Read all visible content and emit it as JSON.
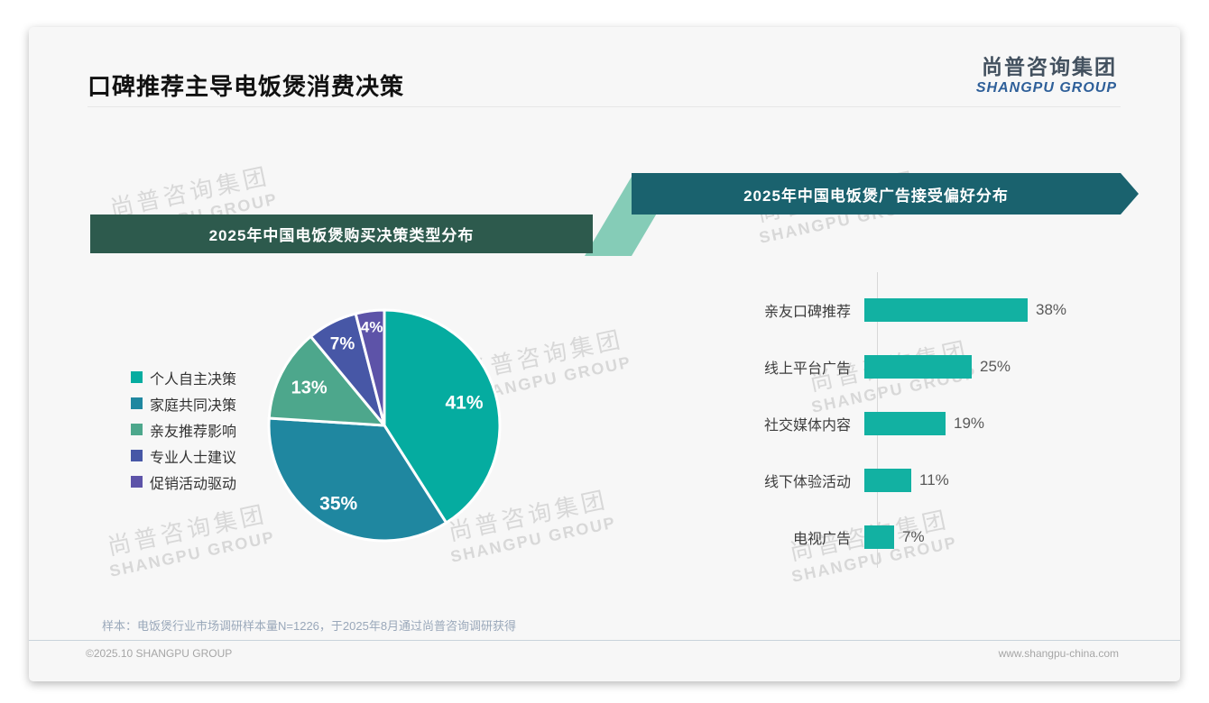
{
  "page": {
    "title": "口碑推荐主导电饭煲消费决策",
    "logo": {
      "cn": "尚普咨询集团",
      "en": "SHANGPU GROUP"
    },
    "watermark": {
      "cn": "尚普咨询集团",
      "en": "SHANGPU GROUP"
    },
    "footer": {
      "sample_note": "样本：电饭煲行业市场调研样本量N=1226，于2025年8月通过尚普咨询调研获得",
      "copyright": "©2025.10 SHANGPU GROUP",
      "website": "www.shangpu-china.com"
    },
    "colors": {
      "banner_left": "#2d5a4d",
      "banner_right": "#1a626e",
      "connector": "#85ccb7",
      "bar": "#12b1a2",
      "card_bg": "#f7f7f7"
    }
  },
  "chart_data": [
    {
      "type": "pie",
      "title": "2025年中国电饭煲购买决策类型分布",
      "categories": [
        "个人自主决策",
        "家庭共同决策",
        "亲友推荐影响",
        "专业人士建议",
        "促销活动驱动"
      ],
      "values": [
        41,
        35,
        13,
        7,
        4
      ],
      "labels": [
        "41%",
        "35%",
        "13%",
        "7%",
        "4%"
      ],
      "unit": "%",
      "colors": [
        "#05aca0",
        "#1f87a0",
        "#4da78c",
        "#4757a6",
        "#5d53a8"
      ],
      "legend_position": "left",
      "start_angle_deg": 0,
      "direction": "clockwise"
    },
    {
      "type": "bar",
      "title": "2025年中国电饭煲广告接受偏好分布",
      "orientation": "horizontal",
      "categories": [
        "亲友口碑推荐",
        "线上平台广告",
        "社交媒体内容",
        "线下体验活动",
        "电视广告"
      ],
      "values": [
        38,
        25,
        19,
        11,
        7
      ],
      "unit": "%",
      "xlim": [
        0,
        40
      ],
      "bar_color": "#12b1a2",
      "grid": false,
      "value_labels": [
        "38%",
        "25%",
        "19%",
        "11%",
        "7%"
      ]
    }
  ]
}
